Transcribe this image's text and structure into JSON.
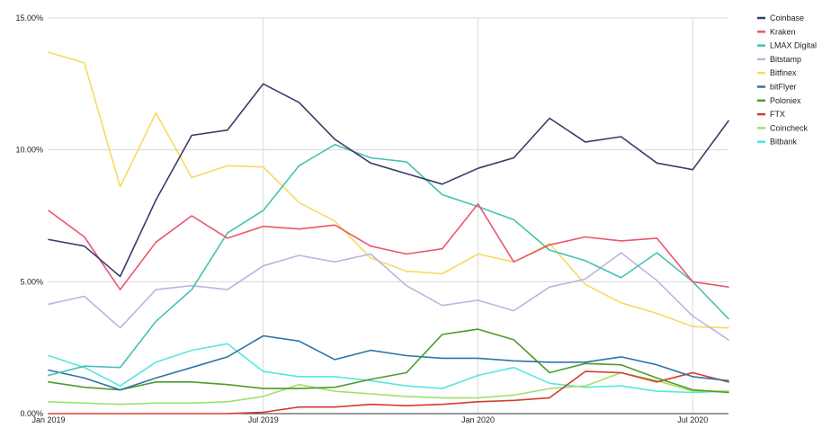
{
  "chart_data": {
    "type": "line",
    "x": [
      "2019-01",
      "2019-02",
      "2019-03",
      "2019-04",
      "2019-05",
      "2019-06",
      "2019-07",
      "2019-08",
      "2019-09",
      "2019-10",
      "2019-11",
      "2019-12",
      "2020-01",
      "2020-02",
      "2020-03",
      "2020-04",
      "2020-05",
      "2020-06",
      "2020-07",
      "2020-08"
    ],
    "xticks": [
      {
        "x": "2019-01",
        "label": "Jan 2019"
      },
      {
        "x": "2019-07",
        "label": "Jul 2019"
      },
      {
        "x": "2020-01",
        "label": "Jan 2020"
      },
      {
        "x": "2020-07",
        "label": "Jul 2020"
      }
    ],
    "yticks": [
      {
        "y": 0,
        "label": "0.00%"
      },
      {
        "y": 5,
        "label": "5.00%"
      },
      {
        "y": 10,
        "label": "10.00%"
      },
      {
        "y": 15,
        "label": "15.00%"
      }
    ],
    "ylim": [
      0,
      15
    ],
    "grid": true,
    "legend_position": "right",
    "series": [
      {
        "name": "Coinbase",
        "color": "#3b3a6b",
        "values": [
          6.6,
          6.35,
          5.2,
          8.1,
          10.55,
          10.75,
          12.5,
          11.8,
          10.4,
          9.5,
          9.1,
          8.7,
          9.3,
          9.7,
          11.2,
          10.3,
          10.5,
          9.5,
          9.25,
          11.1
        ]
      },
      {
        "name": "Kraken",
        "color": "#e8576d",
        "values": [
          7.7,
          6.7,
          4.7,
          6.5,
          7.5,
          6.65,
          7.1,
          7.0,
          7.15,
          6.35,
          6.05,
          6.25,
          7.95,
          5.75,
          6.4,
          6.7,
          6.55,
          6.65,
          5.0,
          4.8
        ]
      },
      {
        "name": "LMAX Digital",
        "color": "#45c2b4",
        "values": [
          1.45,
          1.8,
          1.75,
          3.5,
          4.7,
          6.85,
          7.7,
          9.4,
          10.2,
          9.7,
          9.55,
          8.3,
          7.85,
          7.35,
          6.2,
          5.8,
          5.15,
          6.1,
          5.0,
          3.6
        ]
      },
      {
        "name": "Bitstamp",
        "color": "#bbb5e0",
        "values": [
          4.15,
          4.45,
          3.25,
          4.7,
          4.85,
          4.7,
          5.6,
          6.0,
          5.75,
          6.05,
          4.85,
          4.1,
          4.3,
          3.9,
          4.8,
          5.1,
          6.1,
          5.05,
          3.7,
          2.8
        ]
      },
      {
        "name": "Bitfinex",
        "color": "#f7da5f",
        "values": [
          13.7,
          13.3,
          8.6,
          11.4,
          8.95,
          9.4,
          9.35,
          8.0,
          7.3,
          5.9,
          5.4,
          5.3,
          6.05,
          5.75,
          6.45,
          4.9,
          4.2,
          3.8,
          3.3,
          3.25
        ]
      },
      {
        "name": "bitFlyer",
        "color": "#2e74a8",
        "values": [
          1.65,
          1.35,
          0.9,
          1.35,
          1.75,
          2.15,
          2.95,
          2.75,
          2.05,
          2.4,
          2.2,
          2.1,
          2.1,
          2.0,
          1.95,
          1.95,
          2.15,
          1.85,
          1.4,
          1.25
        ]
      },
      {
        "name": "Poloniex",
        "color": "#4e9a2c",
        "values": [
          1.2,
          1.0,
          0.9,
          1.2,
          1.2,
          1.1,
          0.95,
          0.95,
          1.0,
          1.3,
          1.55,
          3.0,
          3.2,
          2.8,
          1.55,
          1.9,
          1.85,
          1.35,
          0.9,
          0.8
        ]
      },
      {
        "name": "FTX",
        "color": "#d83b2b",
        "values": [
          0.0,
          0.0,
          0.0,
          0.0,
          0.0,
          0.0,
          0.05,
          0.25,
          0.25,
          0.35,
          0.3,
          0.35,
          0.45,
          0.5,
          0.6,
          1.6,
          1.55,
          1.2,
          1.55,
          1.2
        ]
      },
      {
        "name": "Coincheck",
        "color": "#a3df6a",
        "values": [
          0.45,
          0.4,
          0.35,
          0.4,
          0.4,
          0.45,
          0.65,
          1.1,
          0.85,
          0.75,
          0.65,
          0.6,
          0.6,
          0.7,
          0.95,
          1.05,
          1.55,
          1.25,
          0.85,
          0.85
        ]
      },
      {
        "name": "Bitbank",
        "color": "#52e8dc",
        "values": [
          2.2,
          1.75,
          1.05,
          1.95,
          2.4,
          2.65,
          1.6,
          1.4,
          1.4,
          1.25,
          1.05,
          0.95,
          1.45,
          1.75,
          1.15,
          1.0,
          1.05,
          0.85,
          0.8,
          0.85
        ]
      }
    ]
  }
}
